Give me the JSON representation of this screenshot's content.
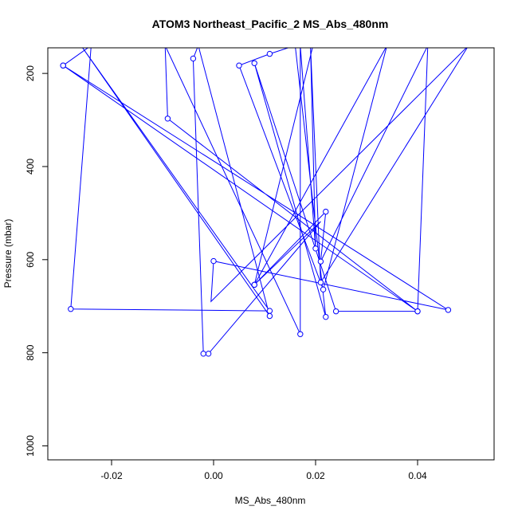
{
  "chart_data": {
    "type": "line",
    "title": "ATOM3 Northeast_Pacific_2 MS_Abs_480nm",
    "xlabel": "MS_Abs_480nm",
    "ylabel": "Pressure (mbar)",
    "xlim": [
      -0.0325,
      0.055
    ],
    "ylim": [
      1030,
      145
    ],
    "y_inverted": true,
    "grid": false,
    "legend": "none",
    "x_ticks": [
      {
        "value": -0.02,
        "label": "-0.02"
      },
      {
        "value": 0.0,
        "label": "0.00"
      },
      {
        "value": 0.02,
        "label": "0.02"
      },
      {
        "value": 0.04,
        "label": "0.04"
      }
    ],
    "y_ticks": [
      {
        "value": 200,
        "label": "200"
      },
      {
        "value": 400,
        "label": "400"
      },
      {
        "value": 600,
        "label": "600"
      },
      {
        "value": 800,
        "label": "800"
      },
      {
        "value": 1000,
        "label": "1000"
      }
    ],
    "series": [
      {
        "color": "#0000ff",
        "marker": "open-circle",
        "points": [
          {
            "x": -0.0295,
            "y": 183,
            "marker": true
          },
          {
            "x": -0.024,
            "y": 140,
            "marker": false
          },
          {
            "x": -0.028,
            "y": 706,
            "marker": true
          },
          {
            "x": 0.011,
            "y": 710,
            "marker": true
          },
          {
            "x": -0.026,
            "y": 140,
            "marker": false
          },
          {
            "x": 0.011,
            "y": 721,
            "marker": true
          },
          {
            "x": -0.003,
            "y": 140,
            "marker": false
          },
          {
            "x": -0.004,
            "y": 168,
            "marker": true
          },
          {
            "x": -0.002,
            "y": 802,
            "marker": true
          },
          {
            "x": -0.001,
            "y": 802,
            "marker": true
          },
          {
            "x": 0.021,
            "y": 518,
            "marker": false
          },
          {
            "x": 0.008,
            "y": 654,
            "marker": true
          },
          {
            "x": 0.034,
            "y": 140,
            "marker": false
          },
          {
            "x": 0.0215,
            "y": 664,
            "marker": true
          },
          {
            "x": 0.005,
            "y": 183,
            "marker": true
          },
          {
            "x": 0.011,
            "y": 158,
            "marker": true
          },
          {
            "x": 0.016,
            "y": 140,
            "marker": false
          },
          {
            "x": 0.022,
            "y": 723,
            "marker": true
          },
          {
            "x": 0.008,
            "y": 178,
            "marker": true
          },
          {
            "x": 0.024,
            "y": 711,
            "marker": true
          },
          {
            "x": 0.04,
            "y": 711,
            "marker": true
          },
          {
            "x": -0.0295,
            "y": 183,
            "marker": true
          },
          {
            "x": 0.046,
            "y": 708,
            "marker": true
          },
          {
            "x": 0.0,
            "y": 603,
            "marker": true
          },
          {
            "x": -0.0005,
            "y": 690,
            "marker": false
          },
          {
            "x": 0.05,
            "y": 140,
            "marker": false
          },
          {
            "x": 0.021,
            "y": 649,
            "marker": true
          },
          {
            "x": 0.019,
            "y": 140,
            "marker": false
          },
          {
            "x": 0.02,
            "y": 576,
            "marker": true
          },
          {
            "x": 0.017,
            "y": 140,
            "marker": false
          },
          {
            "x": 0.017,
            "y": 760,
            "marker": true
          },
          {
            "x": -0.0095,
            "y": 140,
            "marker": false
          },
          {
            "x": -0.009,
            "y": 297,
            "marker": true
          },
          {
            "x": 0.04,
            "y": 711,
            "marker": true
          },
          {
            "x": 0.042,
            "y": 140,
            "marker": false
          },
          {
            "x": 0.021,
            "y": 604,
            "marker": true
          },
          {
            "x": 0.022,
            "y": 497,
            "marker": true
          },
          {
            "x": 0.008,
            "y": 654,
            "marker": true
          },
          {
            "x": 0.0195,
            "y": 140,
            "marker": false
          }
        ]
      }
    ]
  }
}
